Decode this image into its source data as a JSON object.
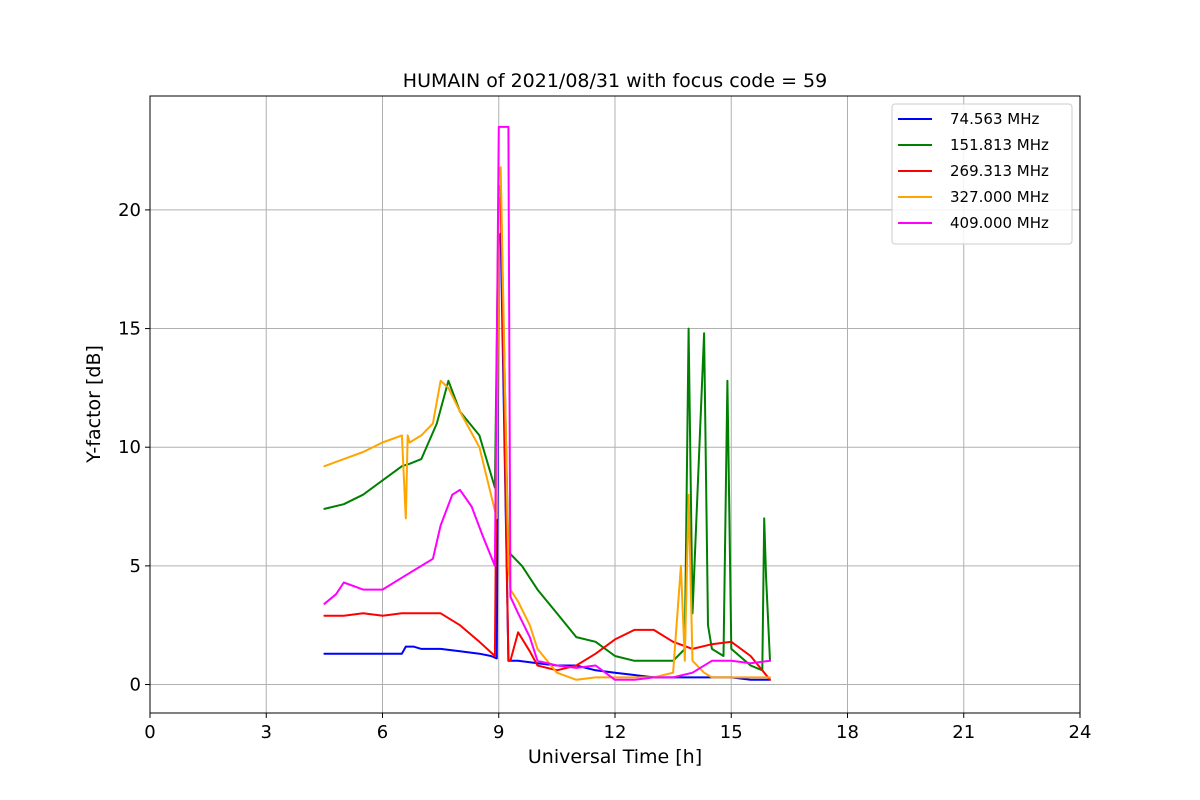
{
  "chart_data": {
    "type": "line",
    "title": "HUMAIN of 2021/08/31 with focus code = 59",
    "xlabel": "Universal Time [h]",
    "ylabel": "Y-factor [dB]",
    "xlim": [
      0,
      24
    ],
    "ylim": [
      -1.2,
      24.8
    ],
    "x_ticks": [
      0,
      3,
      6,
      9,
      12,
      15,
      18,
      21,
      24
    ],
    "y_ticks": [
      0,
      5,
      10,
      15,
      20
    ],
    "grid": true,
    "legend_position": "top-right",
    "series": [
      {
        "name": "74.563 MHz",
        "color": "#0000ff",
        "x": [
          4.5,
          5.0,
          5.5,
          6.0,
          6.5,
          6.6,
          6.8,
          7.0,
          7.5,
          8.0,
          8.5,
          8.8,
          8.95,
          9.0,
          9.05,
          9.25,
          9.3,
          9.5,
          10.0,
          10.5,
          11.0,
          11.5,
          12.0,
          12.5,
          13.0,
          13.5,
          14.0,
          14.5,
          15.0,
          15.5,
          16.0
        ],
        "y": [
          1.3,
          1.3,
          1.3,
          1.3,
          1.3,
          1.6,
          1.6,
          1.5,
          1.5,
          1.4,
          1.3,
          1.2,
          1.1,
          18.8,
          19.0,
          1.0,
          1.0,
          1.0,
          0.9,
          0.8,
          0.8,
          0.6,
          0.5,
          0.4,
          0.3,
          0.3,
          0.3,
          0.3,
          0.3,
          0.2,
          0.2
        ]
      },
      {
        "name": "151.813 MHz",
        "color": "#008000",
        "x": [
          4.5,
          5.0,
          5.5,
          6.0,
          6.5,
          6.7,
          7.0,
          7.4,
          7.7,
          8.0,
          8.5,
          8.9,
          9.0,
          9.05,
          9.25,
          9.3,
          9.6,
          10.0,
          10.5,
          11.0,
          11.5,
          12.0,
          12.5,
          13.0,
          13.5,
          13.8,
          13.9,
          14.0,
          14.3,
          14.4,
          14.5,
          14.8,
          14.9,
          15.0,
          15.5,
          15.8,
          15.85,
          15.9,
          16.0
        ],
        "y": [
          7.4,
          7.6,
          8.0,
          8.6,
          9.2,
          9.3,
          9.5,
          11.0,
          12.8,
          11.5,
          10.5,
          8.3,
          21.0,
          21.0,
          5.5,
          5.5,
          5.0,
          4.0,
          3.0,
          2.0,
          1.8,
          1.2,
          1.0,
          1.0,
          1.0,
          1.5,
          15.0,
          3.0,
          14.8,
          2.5,
          1.5,
          1.2,
          12.8,
          1.5,
          0.8,
          0.6,
          7.0,
          4.5,
          1.0
        ]
      },
      {
        "name": "269.313 MHz",
        "color": "#ff0000",
        "x": [
          4.5,
          5.0,
          5.5,
          6.0,
          6.5,
          7.0,
          7.5,
          8.0,
          8.5,
          8.9,
          9.0,
          9.05,
          9.25,
          9.3,
          9.5,
          9.8,
          10.0,
          10.5,
          11.0,
          11.5,
          12.0,
          12.5,
          13.0,
          13.5,
          14.0,
          14.5,
          15.0,
          15.5,
          16.0
        ],
        "y": [
          2.9,
          2.9,
          3.0,
          2.9,
          3.0,
          3.0,
          3.0,
          2.5,
          1.8,
          1.2,
          20.5,
          20.5,
          1.0,
          1.0,
          2.2,
          1.4,
          0.8,
          0.6,
          0.8,
          1.3,
          1.9,
          2.3,
          2.3,
          1.8,
          1.5,
          1.7,
          1.8,
          1.2,
          0.2
        ]
      },
      {
        "name": "327.000 MHz",
        "color": "#ffa500",
        "x": [
          4.5,
          5.0,
          5.5,
          6.0,
          6.5,
          6.6,
          6.65,
          6.7,
          7.0,
          7.3,
          7.5,
          7.7,
          8.0,
          8.5,
          8.8,
          8.95,
          9.0,
          9.05,
          9.25,
          9.3,
          9.5,
          9.8,
          10.0,
          10.5,
          11.0,
          11.5,
          12.0,
          12.5,
          13.0,
          13.5,
          13.7,
          13.8,
          13.9,
          14.0,
          14.3,
          14.5,
          15.0,
          15.5,
          16.0
        ],
        "y": [
          9.2,
          9.5,
          9.8,
          10.2,
          10.5,
          7.0,
          10.5,
          10.2,
          10.5,
          11.0,
          12.8,
          12.5,
          11.5,
          10.0,
          8.0,
          7.0,
          21.5,
          21.8,
          5.0,
          4.0,
          3.5,
          2.5,
          1.5,
          0.5,
          0.2,
          0.3,
          0.3,
          0.3,
          0.3,
          0.5,
          5.0,
          1.0,
          8.0,
          1.0,
          0.5,
          0.3,
          0.3,
          0.3,
          0.3
        ]
      },
      {
        "name": "409.000 MHz",
        "color": "#ff00ff",
        "x": [
          4.5,
          4.8,
          5.0,
          5.5,
          6.0,
          6.5,
          7.0,
          7.3,
          7.5,
          7.8,
          8.0,
          8.3,
          8.6,
          8.9,
          9.0,
          9.25,
          9.3,
          9.5,
          9.8,
          10.0,
          10.5,
          11.0,
          11.5,
          12.0,
          12.5,
          13.0,
          13.5,
          14.0,
          14.5,
          15.0,
          15.5,
          16.0
        ],
        "y": [
          3.4,
          3.8,
          4.3,
          4.0,
          4.0,
          4.5,
          5.0,
          5.3,
          6.7,
          8.0,
          8.2,
          7.5,
          6.2,
          5.0,
          23.5,
          23.5,
          3.7,
          3.0,
          2.0,
          1.0,
          0.8,
          0.7,
          0.8,
          0.2,
          0.2,
          0.3,
          0.3,
          0.5,
          1.0,
          1.0,
          0.9,
          1.0
        ]
      }
    ]
  }
}
